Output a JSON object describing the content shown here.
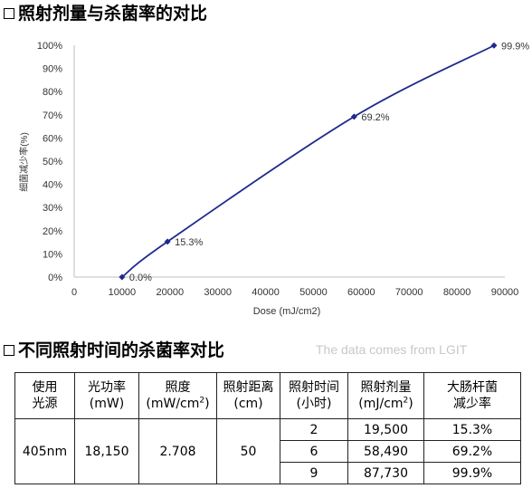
{
  "section1": {
    "title": "照射剂量与杀菌率的对比"
  },
  "chart_data": {
    "type": "line",
    "title": "",
    "xlabel": "Dose (mJ/cm2)",
    "ylabel": "细菌减少率(%)",
    "xlim": [
      0,
      90000
    ],
    "ylim": [
      0,
      100
    ],
    "x_ticks": [
      "0",
      "10000",
      "20000",
      "30000",
      "40000",
      "50000",
      "60000",
      "70000",
      "80000",
      "90000"
    ],
    "y_ticks": [
      "0%",
      "10%",
      "20%",
      "30%",
      "40%",
      "50%",
      "60%",
      "70%",
      "80%",
      "90%",
      "100%"
    ],
    "grid": false,
    "series": [
      {
        "color": "#1f2a8c",
        "x": [
          10000,
          19500,
          58490,
          87730
        ],
        "y": [
          0.0,
          15.3,
          69.2,
          99.9
        ],
        "labels": [
          "0.0%",
          "15.3%",
          "69.2%",
          "99.9%"
        ]
      }
    ]
  },
  "section2": {
    "title": "不同照射时间的杀菌率对比",
    "watermark": "The data comes from LGIT"
  },
  "table": {
    "headers": [
      [
        "使用",
        "光源"
      ],
      [
        "光功率",
        "(mW)"
      ],
      [
        "照度",
        "(mW/cm",
        "2",
        ")"
      ],
      [
        "照射距离",
        "(cm)"
      ],
      [
        "照射时间",
        "(小时)"
      ],
      [
        "照射剂量",
        "(mJ/cm",
        "2",
        ")"
      ],
      [
        "大肠杆菌",
        "减少率"
      ]
    ],
    "source": "405nm",
    "power": "18,150",
    "irradiance": "2.708",
    "distance": "50",
    "rows": [
      {
        "hours": "2",
        "dose": "19,500",
        "rate": "15.3%"
      },
      {
        "hours": "6",
        "dose": "58,490",
        "rate": "69.2%"
      },
      {
        "hours": "9",
        "dose": "87,730",
        "rate": "99.9%"
      }
    ]
  }
}
